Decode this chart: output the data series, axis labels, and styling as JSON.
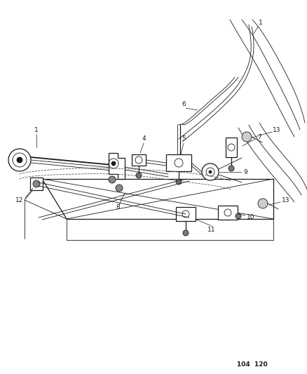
{
  "background_color": "#ffffff",
  "line_color": "#1a1a1a",
  "fig_width": 4.39,
  "fig_height": 5.33,
  "dpi": 100,
  "page_code": "104  120",
  "lw_thin": 0.6,
  "lw_med": 0.9,
  "lw_thick": 1.3,
  "label_fontsize": 6.5
}
